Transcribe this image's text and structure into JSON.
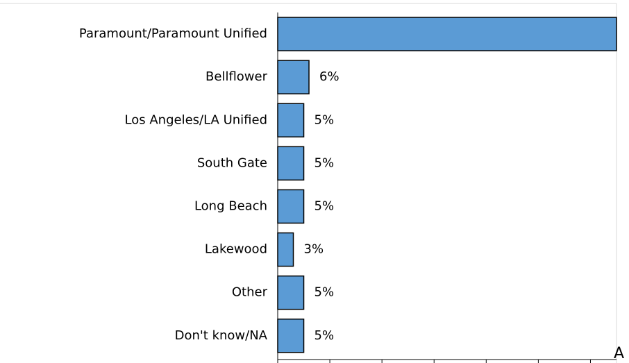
{
  "chart_data": {
    "type": "bar",
    "orientation": "horizontal",
    "categories": [
      "Paramount/Paramount Unified",
      "Bellflower",
      "Los Angeles/LA Unified",
      "South Gate",
      "Long Beach",
      "Lakewood",
      "Other",
      "Don't know/NA"
    ],
    "values": [
      65,
      6,
      5,
      5,
      5,
      3,
      5,
      5
    ],
    "value_labels": [
      null,
      "6%",
      "5%",
      "5%",
      "5%",
      "3%",
      "5%",
      "5%"
    ],
    "color": "#5b9bd5",
    "xlim": [
      0,
      65
    ],
    "xticks": [
      0,
      10,
      20,
      30,
      40,
      50,
      60
    ],
    "annotation": "A"
  }
}
